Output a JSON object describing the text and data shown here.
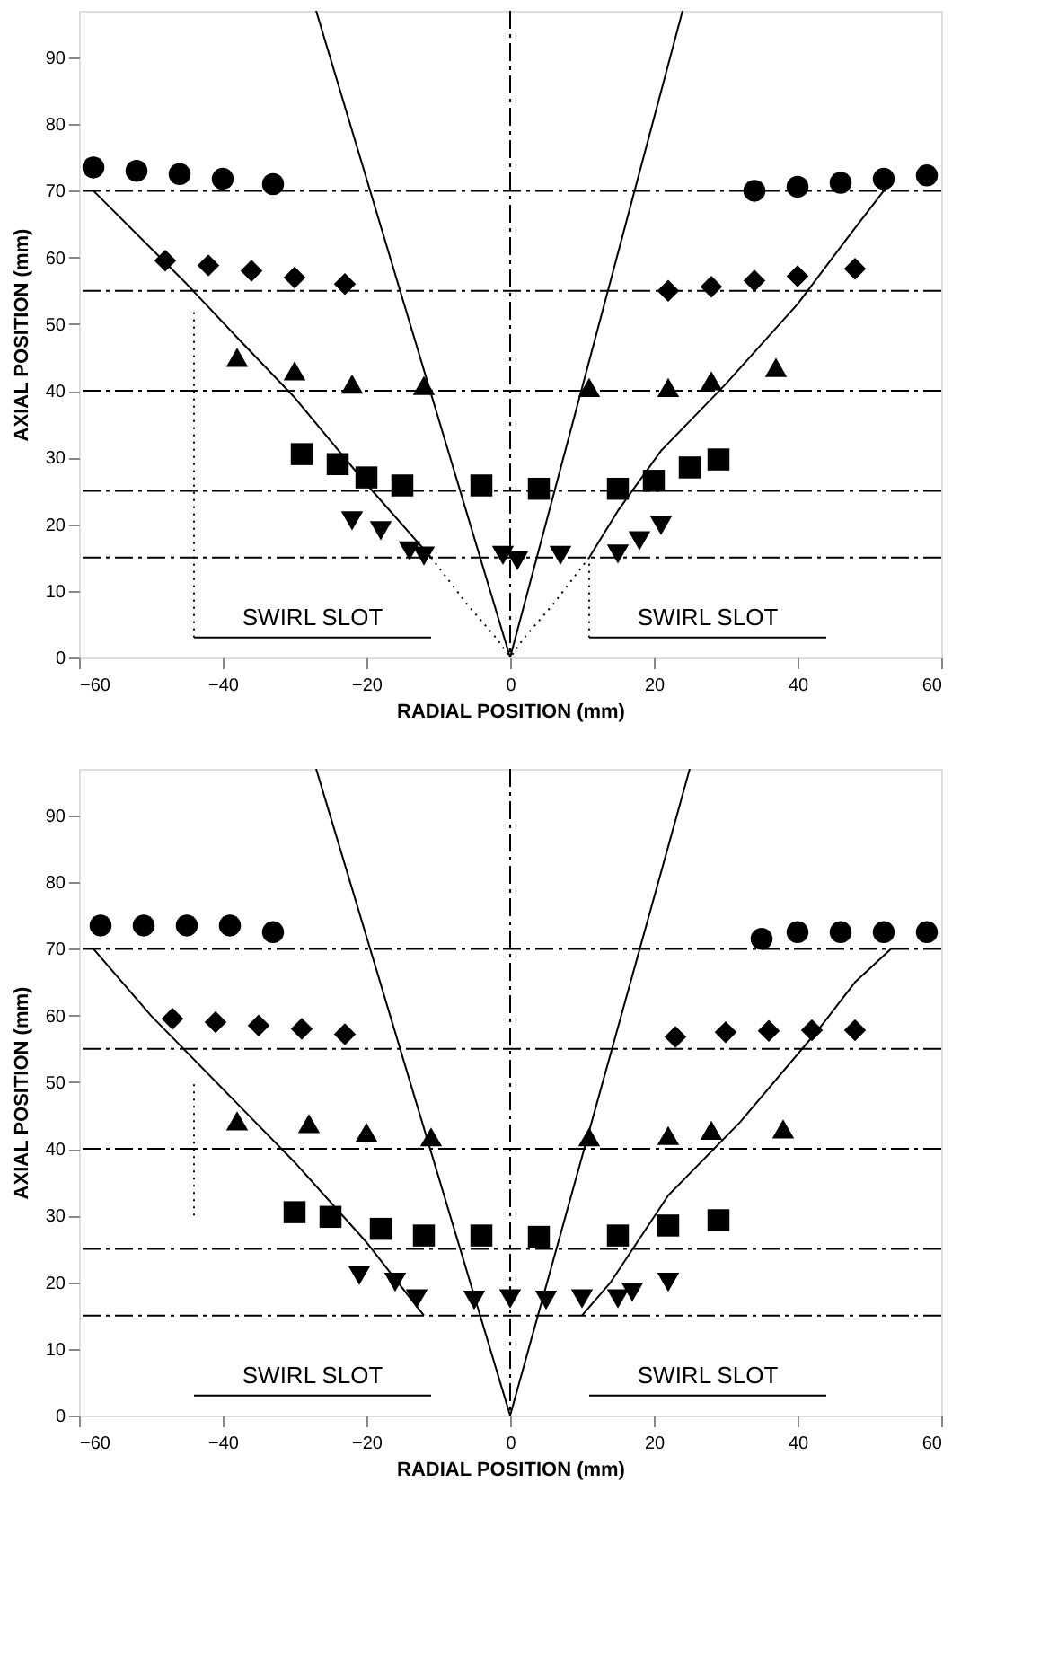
{
  "chart_data": [
    {
      "type": "scatter",
      "xlabel": "RADIAL POSITION  (mm)",
      "ylabel": "AXIAL POSITION  (mm)",
      "xlim": [
        -60,
        60
      ],
      "ylim": [
        0,
        97
      ],
      "xticks": [
        -60,
        -40,
        -20,
        0,
        20,
        40,
        60
      ],
      "yticks": [
        0,
        10,
        20,
        30,
        40,
        50,
        60,
        70,
        80,
        90
      ],
      "grid": false,
      "series": [
        {
          "type": "line",
          "color": "#000000",
          "line_style": "solid",
          "marker": "none",
          "x": [
            0,
            -27
          ],
          "values": [
            0,
            97
          ]
        },
        {
          "type": "line",
          "color": "#000000",
          "line_style": "solid",
          "marker": "none",
          "x": [
            0,
            24
          ],
          "values": [
            0,
            97
          ]
        },
        {
          "type": "line",
          "color": "#000000",
          "line_style": "solid",
          "marker": "none",
          "x": [
            -58,
            -45,
            -38,
            -30,
            -20,
            -11
          ],
          "values": [
            70,
            56,
            48,
            39,
            26,
            15
          ]
        },
        {
          "type": "line",
          "color": "#000000",
          "line_style": "solid",
          "marker": "none",
          "x": [
            11,
            15,
            21,
            30,
            40,
            47,
            52
          ],
          "values": [
            15,
            22,
            31,
            41,
            53,
            63,
            70
          ]
        },
        {
          "type": "line",
          "color": "#000000",
          "line_style": "dotted",
          "marker": "none",
          "x": [
            -11,
            -6,
            -2,
            0
          ],
          "values": [
            15,
            8,
            3,
            0
          ]
        },
        {
          "type": "line",
          "color": "#000000",
          "line_style": "dotted",
          "marker": "none",
          "x": [
            11,
            6,
            2,
            0
          ],
          "values": [
            15,
            8,
            3,
            0
          ]
        },
        {
          "type": "line",
          "color": "#000000",
          "line_style": "dotted",
          "marker": "none",
          "x": [
            -44,
            -44
          ],
          "values": [
            3,
            52
          ]
        },
        {
          "type": "line",
          "color": "#000000",
          "line_style": "dotted",
          "marker": "none",
          "x": [
            11,
            11
          ],
          "values": [
            3,
            15
          ]
        },
        {
          "type": "line",
          "color": "#000000",
          "line_style": "solid",
          "marker": "none",
          "x": [
            -44,
            -11
          ],
          "values": [
            3,
            3
          ]
        },
        {
          "type": "line",
          "color": "#000000",
          "line_style": "solid",
          "marker": "none",
          "x": [
            11,
            44
          ],
          "values": [
            3,
            3
          ]
        },
        {
          "type": "scatter",
          "color": "#000000",
          "marker": "circle",
          "x": [
            -58,
            -52,
            -46,
            -40,
            -33,
            34,
            40,
            46,
            52,
            58
          ],
          "values": [
            73.5,
            73,
            72.5,
            71.8,
            71,
            70,
            70.6,
            71.2,
            71.8,
            72.3
          ]
        },
        {
          "type": "scatter",
          "color": "#000000",
          "marker": "diamond",
          "x": [
            -48,
            -42,
            -36,
            -30,
            -23,
            22,
            28,
            34,
            40,
            48
          ],
          "values": [
            59.5,
            58.8,
            58,
            57,
            56,
            55,
            55.6,
            56.5,
            57.2,
            58.3
          ]
        },
        {
          "type": "scatter",
          "color": "#000000",
          "marker": "triangle",
          "x": [
            -38,
            -30,
            -22,
            -12,
            11,
            22,
            28,
            37
          ],
          "values": [
            45,
            43,
            41,
            40.8,
            40.5,
            40.5,
            41.5,
            43.5
          ]
        },
        {
          "type": "scatter",
          "color": "#000000",
          "marker": "square",
          "x": [
            -29,
            -24,
            -20,
            -15,
            -4,
            4,
            15,
            20,
            25,
            29
          ],
          "values": [
            30.5,
            29,
            27,
            25.8,
            25.8,
            25.3,
            25.3,
            26.5,
            28.5,
            29.7
          ]
        },
        {
          "type": "scatter",
          "color": "#000000",
          "marker": "triangle-down",
          "x": [
            -22,
            -18,
            -14,
            -12,
            -1,
            1,
            7,
            15,
            18,
            21
          ],
          "values": [
            20.5,
            19,
            16,
            15.2,
            15.3,
            14.5,
            15.3,
            15.5,
            17.5,
            19.8
          ]
        }
      ],
      "ref_lines": [
        {
          "axis": "x",
          "value": 0,
          "line_style": "dashed"
        },
        {
          "axis": "y",
          "value": 15,
          "line_style": "dashed"
        },
        {
          "axis": "y",
          "value": 25,
          "line_style": "dashed"
        },
        {
          "axis": "y",
          "value": 40,
          "line_style": "dashed"
        },
        {
          "axis": "y",
          "value": 55,
          "line_style": "dashed"
        },
        {
          "axis": "y",
          "value": 70,
          "line_style": "dashed"
        }
      ],
      "annotations": [
        "SWIRL SLOT",
        "SWIRL SLOT"
      ]
    },
    {
      "type": "scatter",
      "xlabel": "RADIAL POSITION  (mm)",
      "ylabel": "AXIAL POSITION  (mm)",
      "xlim": [
        -60,
        60
      ],
      "ylim": [
        0,
        97
      ],
      "xticks": [
        -60,
        -40,
        -20,
        0,
        20,
        40,
        60
      ],
      "yticks": [
        0,
        10,
        20,
        30,
        40,
        50,
        60,
        70,
        80,
        90
      ],
      "grid": false,
      "series": [
        {
          "type": "line",
          "color": "#000000",
          "line_style": "solid",
          "marker": "none",
          "x": [
            0,
            -27
          ],
          "values": [
            0,
            97
          ]
        },
        {
          "type": "line",
          "color": "#000000",
          "line_style": "solid",
          "marker": "none",
          "x": [
            0,
            25
          ],
          "values": [
            0,
            97
          ]
        },
        {
          "type": "line",
          "color": "#000000",
          "line_style": "solid",
          "marker": "none",
          "x": [
            -58,
            -50,
            -40,
            -30,
            -20,
            -12
          ],
          "values": [
            70,
            60,
            49,
            38,
            26,
            15
          ]
        },
        {
          "type": "line",
          "color": "#000000",
          "line_style": "solid",
          "marker": "none",
          "x": [
            10,
            14,
            22,
            32,
            43,
            48,
            53
          ],
          "values": [
            15,
            20,
            33,
            44,
            58,
            65,
            70
          ]
        },
        {
          "type": "line",
          "color": "#000000",
          "line_style": "dotted",
          "marker": "none",
          "x": [
            -44,
            -44
          ],
          "values": [
            30,
            50
          ]
        },
        {
          "type": "line",
          "color": "#000000",
          "line_style": "solid",
          "marker": "none",
          "x": [
            -44,
            -11
          ],
          "values": [
            3,
            3
          ]
        },
        {
          "type": "line",
          "color": "#000000",
          "line_style": "solid",
          "marker": "none",
          "x": [
            11,
            44
          ],
          "values": [
            3,
            3
          ]
        },
        {
          "type": "scatter",
          "color": "#000000",
          "marker": "circle",
          "x": [
            -57,
            -51,
            -45,
            -39,
            -33,
            35,
            40,
            46,
            52,
            58
          ],
          "values": [
            73.5,
            73.5,
            73.5,
            73.5,
            72.5,
            71.5,
            72.5,
            72.5,
            72.5,
            72.5
          ]
        },
        {
          "type": "scatter",
          "color": "#000000",
          "marker": "diamond",
          "x": [
            -47,
            -41,
            -35,
            -29,
            -23,
            23,
            30,
            36,
            42,
            48
          ],
          "values": [
            59.5,
            59,
            58.5,
            58,
            57.2,
            56.8,
            57.5,
            57.7,
            57.8,
            57.8
          ]
        },
        {
          "type": "scatter",
          "color": "#000000",
          "marker": "triangle",
          "x": [
            -38,
            -28,
            -20,
            -11,
            11,
            22,
            28,
            38
          ],
          "values": [
            44.2,
            43.8,
            42.5,
            41.8,
            41.8,
            42,
            42.8,
            43
          ]
        },
        {
          "type": "scatter",
          "color": "#000000",
          "marker": "square",
          "x": [
            -30,
            -25,
            -18,
            -12,
            -4,
            4,
            15,
            22,
            29
          ],
          "values": [
            30.5,
            29.8,
            28,
            27,
            27,
            26.8,
            27,
            28.5,
            29.3
          ]
        },
        {
          "type": "scatter",
          "color": "#000000",
          "marker": "triangle-down",
          "x": [
            -21,
            -16,
            -13,
            -5,
            0,
            5,
            10,
            15,
            17,
            22
          ],
          "values": [
            21,
            20,
            17.5,
            17.3,
            17.5,
            17.3,
            17.5,
            17.5,
            18.5,
            20
          ]
        }
      ],
      "ref_lines": [
        {
          "axis": "x",
          "value": 0,
          "line_style": "dashed"
        },
        {
          "axis": "y",
          "value": 15,
          "line_style": "dashed"
        },
        {
          "axis": "y",
          "value": 25,
          "line_style": "dashed"
        },
        {
          "axis": "y",
          "value": 40,
          "line_style": "dashed"
        },
        {
          "axis": "y",
          "value": 55,
          "line_style": "dashed"
        },
        {
          "axis": "y",
          "value": 70,
          "line_style": "dashed"
        }
      ],
      "annotations": [
        "SWIRL SLOT",
        "SWIRL SLOT"
      ]
    }
  ]
}
